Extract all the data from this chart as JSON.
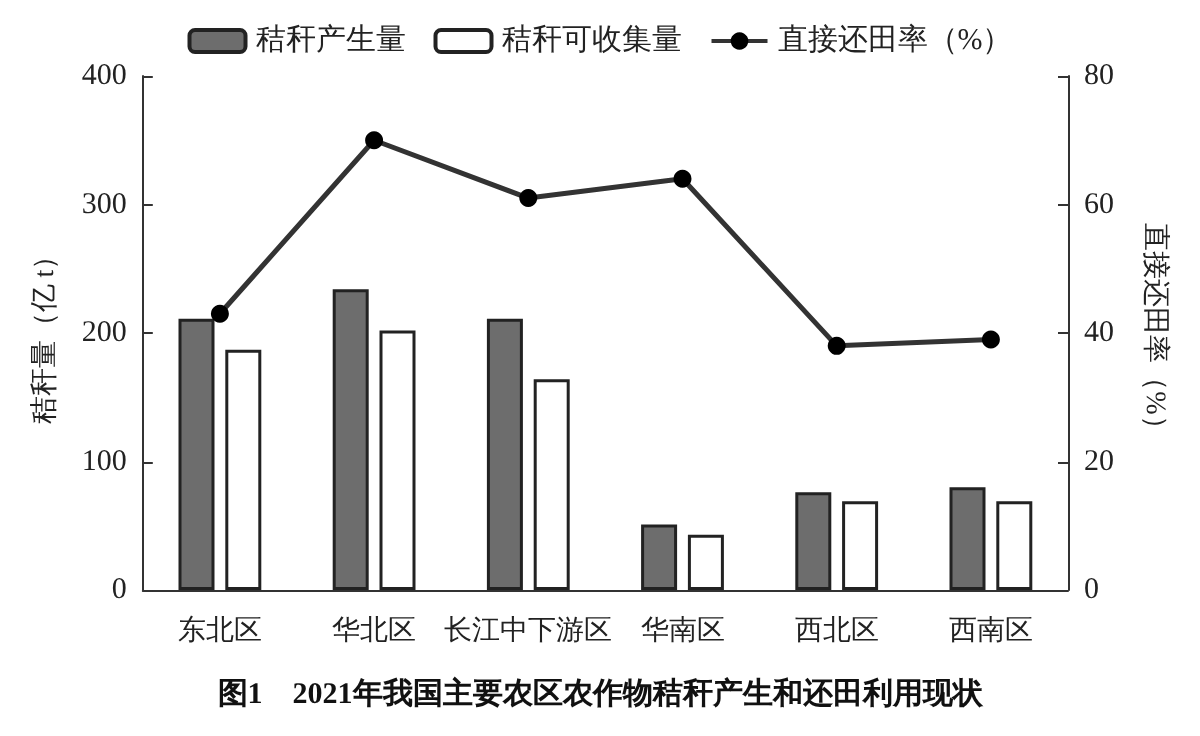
{
  "chart_data": {
    "type": "bar",
    "title": "图1　2021年我国主要农区农作物秸秆产生和还田利用现状",
    "ylabel": "秸秆量（亿 t）",
    "y2label": "直接还田率（%）",
    "categories": [
      "东北区",
      "华北区",
      "长江中下游区",
      "华南区",
      "西北区",
      "西南区"
    ],
    "series": [
      {
        "name": "秸秆产生量",
        "color": "#6d6d6d",
        "values": [
          211,
          234,
          211,
          51,
          76,
          80
        ]
      },
      {
        "name": "秸秆可收集量",
        "color": "#ffffff",
        "values": [
          187,
          202,
          164,
          43,
          69,
          69
        ]
      },
      {
        "name": "直接还田率（%）",
        "type": "line",
        "axis": "y2",
        "color": "#333333",
        "values": [
          43,
          70,
          61,
          64,
          38,
          39
        ]
      }
    ],
    "ylim": [
      0,
      400
    ],
    "yticks": [
      0,
      100,
      200,
      300,
      400
    ],
    "y2lim": [
      0,
      80
    ],
    "y2ticks": [
      0,
      20,
      40,
      60,
      80
    ],
    "grid": false,
    "legend": "top",
    "marker": "circle",
    "line_style": "solid"
  }
}
